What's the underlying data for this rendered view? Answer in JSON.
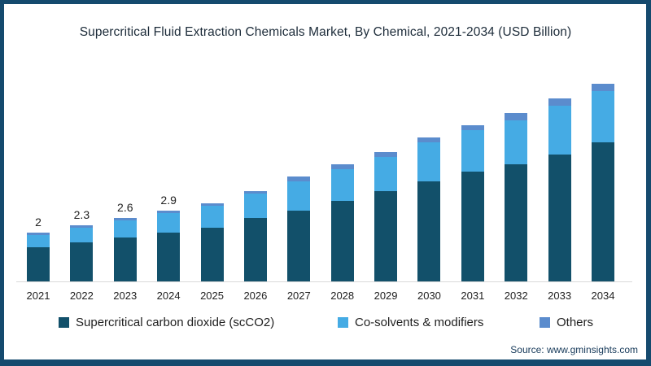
{
  "title": "Supercritical Fluid Extraction Chemicals Market, By Chemical, 2021-2034 (USD Billion)",
  "source": "Source: www.gminsights.com",
  "chart_data": {
    "type": "bar",
    "stacked": true,
    "title": "Supercritical Fluid Extraction Chemicals Market, By Chemical, 2021-2034 (USD Billion)",
    "xlabel": "",
    "ylabel": "USD Billion",
    "ylim": [
      0,
      8.5
    ],
    "grid": false,
    "legend_position": "bottom",
    "categories": [
      "2021",
      "2022",
      "2023",
      "2024",
      "2025",
      "2026",
      "2027",
      "2028",
      "2029",
      "2030",
      "2031",
      "2032",
      "2033",
      "2034"
    ],
    "series": [
      {
        "name": "Supercritical carbon dioxide (scCO2)",
        "color": "#12506A",
        "values": [
          1.4,
          1.6,
          1.8,
          2.0,
          2.2,
          2.6,
          2.9,
          3.3,
          3.7,
          4.1,
          4.5,
          4.8,
          5.2,
          5.7
        ]
      },
      {
        "name": "Co-solvents & modifiers",
        "color": "#45ABE4",
        "values": [
          0.5,
          0.6,
          0.7,
          0.8,
          0.9,
          1.0,
          1.2,
          1.3,
          1.4,
          1.6,
          1.7,
          1.8,
          2.0,
          2.1
        ]
      },
      {
        "name": "Others",
        "color": "#5B8CCD",
        "values": [
          0.1,
          0.1,
          0.1,
          0.1,
          0.1,
          0.1,
          0.2,
          0.2,
          0.2,
          0.2,
          0.2,
          0.3,
          0.3,
          0.3
        ]
      }
    ],
    "totals": [
      2.0,
      2.3,
      2.6,
      2.9,
      3.2,
      3.7,
      4.3,
      4.8,
      5.3,
      5.9,
      6.4,
      6.9,
      7.5,
      8.1
    ],
    "value_labels": {
      "2021": "2",
      "2022": "2.3",
      "2023": "2.6",
      "2024": "2.9"
    }
  },
  "colors": {
    "frame_border": "#154A6E",
    "axis_line": "#D9D9D9",
    "title_text": "#1C2B39",
    "tick_text": "#222222",
    "value_label_text": "#222222",
    "legend_text": "#1F1F1F",
    "source_text": "#173A5A"
  }
}
